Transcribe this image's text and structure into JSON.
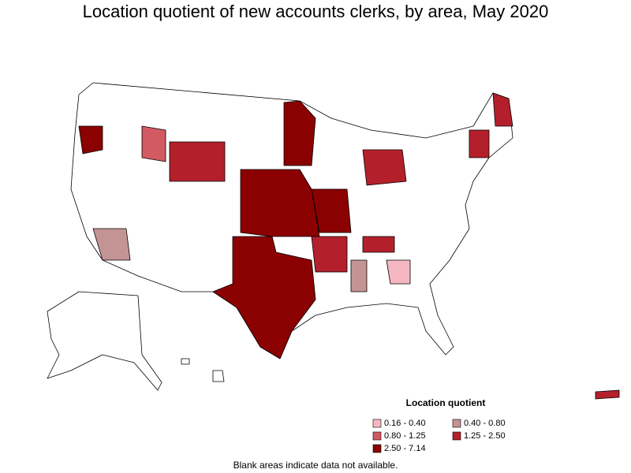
{
  "title": "Location quotient of new accounts clerks, by area, May 2020",
  "legend": {
    "title": "Location quotient",
    "items": [
      {
        "label": "0.16 - 0.40",
        "color": "#f5b8c2"
      },
      {
        "label": "0.40 - 0.80",
        "color": "#c49494"
      },
      {
        "label": "0.80 - 1.25",
        "color": "#d25a62"
      },
      {
        "label": "1.25 - 2.50",
        "color": "#b3202c"
      },
      {
        "label": "2.50 - 7.14",
        "color": "#8b0000"
      }
    ]
  },
  "footnote": "Blank areas indicate data not available."
}
